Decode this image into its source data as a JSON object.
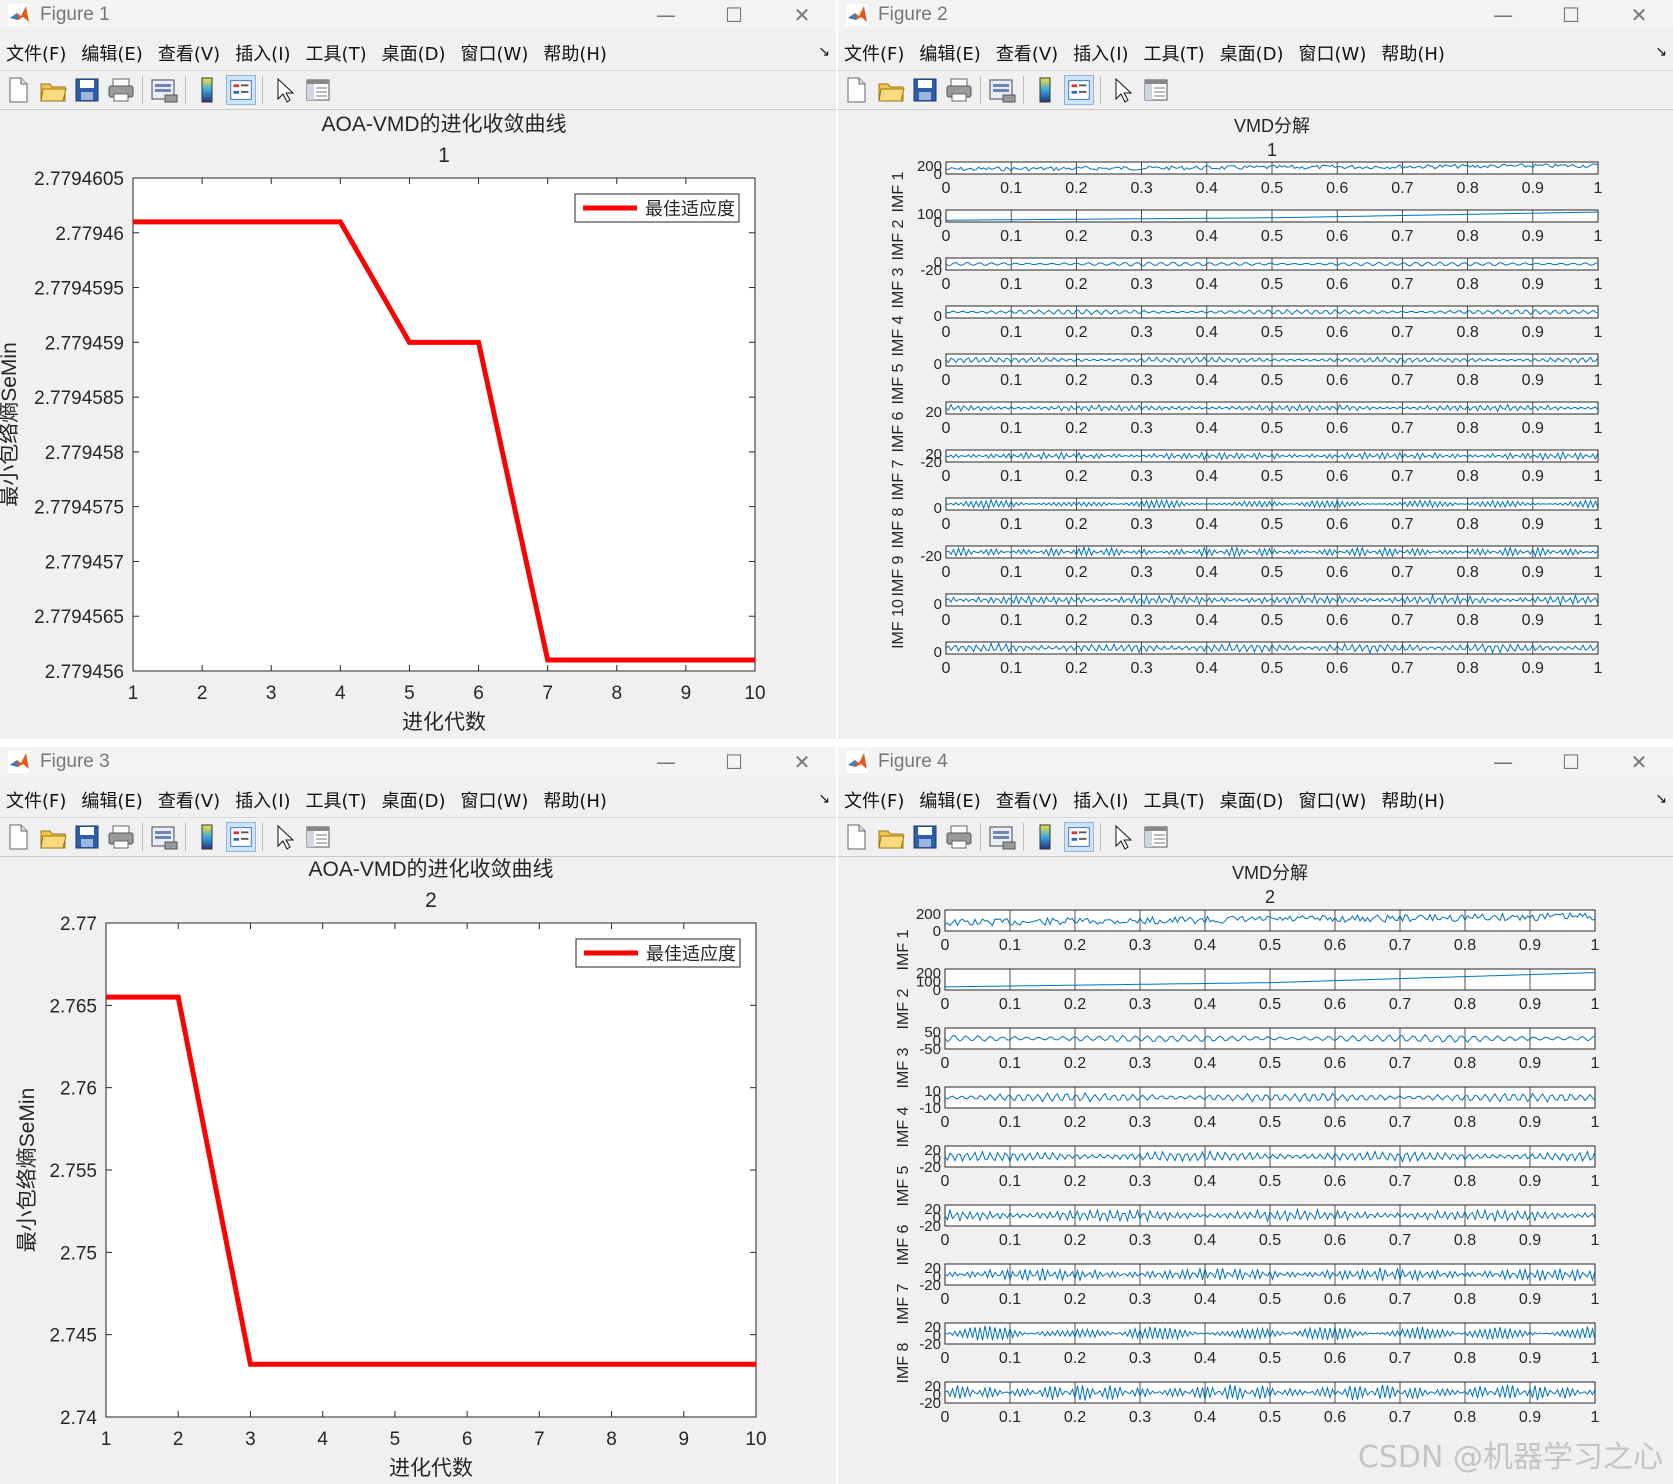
{
  "menu": [
    "文件(F)",
    "编辑(E)",
    "查看(V)",
    "插入(I)",
    "工具(T)",
    "桌面(D)",
    "窗口(W)",
    "帮助(H)"
  ],
  "menu_end": "↘",
  "window_buttons": [
    "—",
    "☐",
    "✕"
  ],
  "toolbar_icons": [
    "new-file-icon",
    "open-folder-icon",
    "save-icon",
    "print-icon",
    "print-preview-icon",
    "colorbar-icon",
    "legend-icon",
    "pointer-icon",
    "property-editor-icon"
  ],
  "colors": {
    "line_red": "#ff0000",
    "signal_blue": "#0072bd",
    "window_bg": "#f0f0f0"
  },
  "figures": [
    {
      "title": "Figure 1"
    },
    {
      "title": "Figure 2"
    },
    {
      "title": "Figure 3"
    },
    {
      "title": "Figure 4"
    }
  ],
  "watermark": "CSDN @机器学习之心",
  "chart_data": [
    {
      "type": "line",
      "title": "AOA-VMD的进化收敛曲线",
      "subtitle": "1",
      "xlabel": "进化代数",
      "ylabel": "最小包络熵SeMin",
      "xlim": [
        1,
        10
      ],
      "ylim": [
        2.779456,
        2.7794605
      ],
      "xticks": [
        "1",
        "2",
        "3",
        "4",
        "5",
        "6",
        "7",
        "8",
        "9",
        "10"
      ],
      "yticks": [
        "2.779456",
        "2.7794565",
        "2.779457",
        "2.7794575",
        "2.779458",
        "2.7794585",
        "2.779459",
        "2.7794595",
        "2.77946",
        "2.7794605"
      ],
      "legend": "最佳适应度",
      "legend_position": "top-right",
      "series": [
        {
          "name": "最佳适应度",
          "x": [
            1,
            2,
            3,
            4,
            5,
            6,
            7,
            8,
            9,
            10
          ],
          "values": [
            2.7794601,
            2.7794601,
            2.7794601,
            2.7794601,
            2.779459,
            2.779459,
            2.7794561,
            2.7794561,
            2.7794561,
            2.7794561
          ]
        }
      ]
    },
    {
      "type": "line",
      "title": "VMD分解",
      "subtitle": "1",
      "xticks": [
        "0",
        "0.1",
        "0.2",
        "0.3",
        "0.4",
        "0.5",
        "0.6",
        "0.7",
        "0.8",
        "0.9",
        "1"
      ],
      "panels": [
        {
          "label": "",
          "yticks": [
            "200",
            "0"
          ]
        },
        {
          "label": "IMF 1",
          "yticks": [
            "100",
            "0"
          ]
        },
        {
          "label": "IMF 2",
          "yticks": [
            "0",
            "-20"
          ]
        },
        {
          "label": "IMF 3",
          "yticks": [
            "0"
          ]
        },
        {
          "label": "IMF 4",
          "yticks": [
            "0"
          ]
        },
        {
          "label": "IMF 5",
          "yticks": [
            "20"
          ]
        },
        {
          "label": "IMF 6",
          "yticks": [
            "20",
            "-20"
          ]
        },
        {
          "label": "IMF 7",
          "yticks": [
            "0"
          ]
        },
        {
          "label": "IMF 8",
          "yticks": [
            "-20"
          ]
        },
        {
          "label": "IMF 9",
          "yticks": [
            "0"
          ]
        },
        {
          "label": "IMF 10",
          "yticks": [
            "0"
          ]
        }
      ]
    },
    {
      "type": "line",
      "title": "AOA-VMD的进化收敛曲线",
      "subtitle": "2",
      "xlabel": "进化代数",
      "ylabel": "最小包络熵SeMin",
      "xlim": [
        1,
        10
      ],
      "ylim": [
        2.74,
        2.77
      ],
      "xticks": [
        "1",
        "2",
        "3",
        "4",
        "5",
        "6",
        "7",
        "8",
        "9",
        "10"
      ],
      "yticks": [
        "2.74",
        "2.745",
        "2.75",
        "2.755",
        "2.76",
        "2.765",
        "2.77"
      ],
      "legend": "最佳适应度",
      "legend_position": "top-right",
      "series": [
        {
          "name": "最佳适应度",
          "x": [
            1,
            2,
            3,
            4,
            5,
            6,
            7,
            8,
            9,
            10
          ],
          "values": [
            2.7655,
            2.7655,
            2.7432,
            2.7432,
            2.7432,
            2.7432,
            2.7432,
            2.7432,
            2.7432,
            2.7432
          ]
        }
      ]
    },
    {
      "type": "line",
      "title": "VMD分解",
      "subtitle": "2",
      "xticks": [
        "0",
        "0.1",
        "0.2",
        "0.3",
        "0.4",
        "0.5",
        "0.6",
        "0.7",
        "0.8",
        "0.9",
        "1"
      ],
      "panels": [
        {
          "label": "",
          "yticks": [
            "200",
            "0"
          ]
        },
        {
          "label": "IMF 1",
          "yticks": [
            "200",
            "100",
            "0"
          ]
        },
        {
          "label": "IMF 2",
          "yticks": [
            "50",
            "0",
            "-50"
          ]
        },
        {
          "label": "IMF 3",
          "yticks": [
            "10",
            "0",
            "-10"
          ]
        },
        {
          "label": "IMF 4",
          "yticks": [
            "20",
            "0",
            "-20"
          ]
        },
        {
          "label": "IMF 5",
          "yticks": [
            "20",
            "0",
            "-20"
          ]
        },
        {
          "label": "IMF 6",
          "yticks": [
            "20",
            "0",
            "-20"
          ]
        },
        {
          "label": "IMF 7",
          "yticks": [
            "20",
            "0",
            "-20"
          ]
        },
        {
          "label": "IMF 8",
          "yticks": [
            "20",
            "0",
            "-20"
          ]
        }
      ]
    }
  ]
}
